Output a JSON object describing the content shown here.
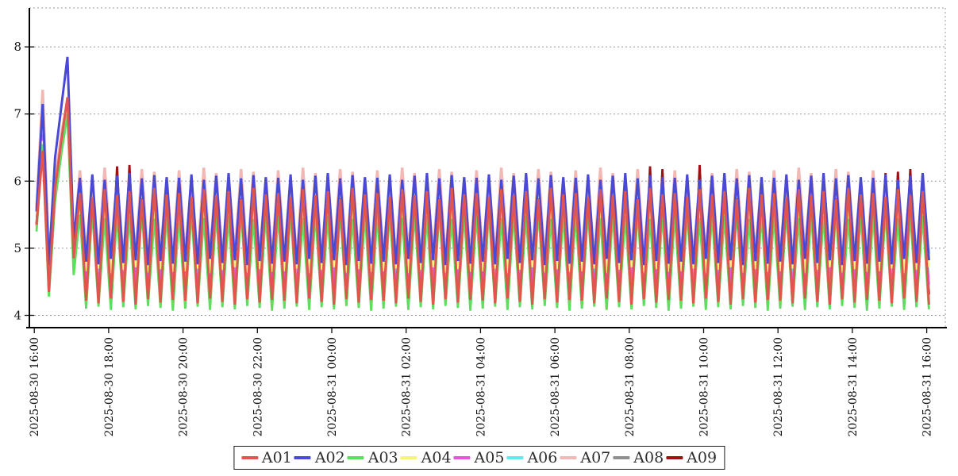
{
  "chart_data": {
    "type": "line",
    "title": "",
    "x_axis": {
      "tick_labels": [
        "2025-08-30 16:00",
        "2025-08-30 18:00",
        "2025-08-30 20:00",
        "2025-08-30 22:00",
        "2025-08-31 00:00",
        "2025-08-31 02:00",
        "2025-08-31 04:00",
        "2025-08-31 06:00",
        "2025-08-31 08:00",
        "2025-08-31 10:00",
        "2025-08-31 12:00",
        "2025-08-31 14:00",
        "2025-08-31 16:00"
      ],
      "tick_rotation_deg": -90,
      "start": "2025-08-30 16:00",
      "end": "2025-08-31 16:00",
      "sample_interval_minutes": 10,
      "num_points": 145
    },
    "y_axis": {
      "min": 4,
      "max": 8.6,
      "ticks": [
        4,
        5,
        6,
        7,
        8
      ],
      "gridlines": "dotted"
    },
    "legend": {
      "position": "bottom-center",
      "bordered": true
    },
    "waveform_note": "Each series alternates trough/peak every sample (~20 min full cycle). Indices 0-6 are the start-up transient (spike to ~7.9 at idx 5); from idx 7 odd indices are peaks and even are troughs, cycling through the repeating peak/trough sequences; 'anomalies' are index-value overrides read from the plot.",
    "series": [
      {
        "name": "A01",
        "color": "#e1554f",
        "line_width": 3.0,
        "transient": [
          5.35,
          6.45,
          4.35,
          5.9,
          6.6,
          7.25,
          4.85
        ],
        "steady_peaks": [
          5.82,
          5.76,
          5.88,
          5.79,
          5.85,
          5.73,
          5.9,
          5.8
        ],
        "steady_troughs": [
          4.22,
          4.18,
          4.25,
          4.2,
          4.16,
          4.24,
          4.19,
          4.23
        ],
        "anomalies": {}
      },
      {
        "name": "A02",
        "color": "#4a49d3",
        "line_width": 3.0,
        "transient": [
          5.55,
          7.15,
          4.75,
          6.35,
          7.1,
          7.85,
          5.1
        ],
        "steady_peaks": [
          6.05,
          6.1,
          6.02,
          6.08,
          6.12,
          6.04,
          6.09,
          6.06
        ],
        "steady_troughs": [
          4.8,
          4.76,
          4.84,
          4.78,
          4.82,
          4.75,
          4.81,
          4.77
        ],
        "anomalies": {}
      },
      {
        "name": "A03",
        "color": "#5fdd5f",
        "line_width": 2.8,
        "transient": [
          5.25,
          6.55,
          4.28,
          5.7,
          6.4,
          7.0,
          4.6
        ],
        "steady_peaks": [
          5.5,
          5.55,
          5.45,
          5.52,
          5.48,
          5.56,
          5.44,
          5.51
        ],
        "steady_troughs": [
          4.1,
          4.13,
          4.08,
          4.12,
          4.09,
          4.14,
          4.11,
          4.07
        ],
        "anomalies": {}
      },
      {
        "name": "A04",
        "color": "#f5f37c",
        "line_width": 2.8,
        "transient": [
          5.3,
          6.6,
          4.75,
          5.75,
          6.45,
          7.05,
          4.95
        ],
        "steady_peaks": [
          5.58,
          5.52,
          5.6,
          5.55,
          5.62,
          5.5,
          5.57,
          5.54
        ],
        "steady_troughs": [
          4.66,
          4.7,
          4.63,
          4.68,
          4.72,
          4.64,
          4.69,
          4.65
        ],
        "anomalies": {}
      },
      {
        "name": "A05",
        "color": "#e356dc",
        "line_width": 2.8,
        "transient": [
          5.32,
          6.7,
          4.6,
          5.8,
          6.5,
          7.1,
          4.78
        ],
        "steady_peaks": [
          5.63,
          5.58,
          5.66,
          5.6,
          5.68,
          5.56,
          5.64,
          5.59
        ],
        "steady_troughs": [
          4.44,
          4.4,
          4.47,
          4.42,
          4.46,
          4.39,
          4.45,
          4.41
        ],
        "anomalies": {}
      },
      {
        "name": "A06",
        "color": "#62e9e9",
        "line_width": 2.4,
        "transient": [
          5.38,
          6.9,
          4.45,
          5.85,
          6.55,
          7.15,
          4.88
        ],
        "steady_peaks": [
          5.68,
          5.64,
          5.7,
          5.66,
          5.62,
          5.69,
          5.65,
          5.67
        ],
        "steady_troughs": [
          4.52,
          4.56,
          4.5,
          4.54,
          4.57,
          4.51,
          4.55,
          4.53
        ],
        "anomalies": {}
      },
      {
        "name": "A07",
        "color": "#f3b7b4",
        "line_width": 3.4,
        "transient": [
          5.6,
          7.36,
          4.9,
          6.0,
          6.7,
          7.2,
          5.02
        ],
        "steady_peaks": [
          6.16,
          6.02,
          6.2,
          6.12,
          6.0,
          6.18,
          6.14,
          6.04
        ],
        "steady_troughs": [
          4.9,
          4.86,
          4.93,
          4.88,
          4.92,
          4.85,
          4.91,
          4.87
        ],
        "anomalies": {
          "13": 6.0,
          "15": 6.02,
          "99": 6.04,
          "101": 6.0,
          "107": 6.02,
          "137": 6.02,
          "139": 6.0,
          "141": 5.98,
          "143": 6.0
        }
      },
      {
        "name": "A08",
        "color": "#8f8f8f",
        "line_width": 2.4,
        "transient": [
          5.33,
          6.8,
          4.68,
          5.78,
          6.48,
          7.08,
          4.9
        ],
        "steady_peaks": [
          5.6,
          5.64,
          5.57,
          5.62,
          5.58,
          5.65,
          5.59,
          5.63
        ],
        "steady_troughs": [
          4.35,
          4.38,
          4.32,
          4.36,
          4.39,
          4.33,
          4.37,
          4.34
        ],
        "anomalies": {}
      },
      {
        "name": "A09",
        "color": "#9c1111",
        "line_width": 2.8,
        "transient": [
          5.36,
          6.85,
          4.38,
          5.82,
          6.52,
          7.18,
          4.82
        ],
        "steady_peaks": [
          5.72,
          5.68,
          5.75,
          5.7,
          5.66,
          5.74,
          5.69,
          5.71
        ],
        "steady_troughs": [
          4.3,
          4.27,
          4.32,
          4.29,
          4.31,
          4.26,
          4.3,
          4.28
        ],
        "anomalies": {
          "13": 6.22,
          "15": 6.24,
          "92": 4.1,
          "99": 6.22,
          "101": 6.18,
          "107": 6.24,
          "137": 6.12,
          "139": 6.14,
          "141": 6.18,
          "143": 6.12
        }
      }
    ]
  }
}
